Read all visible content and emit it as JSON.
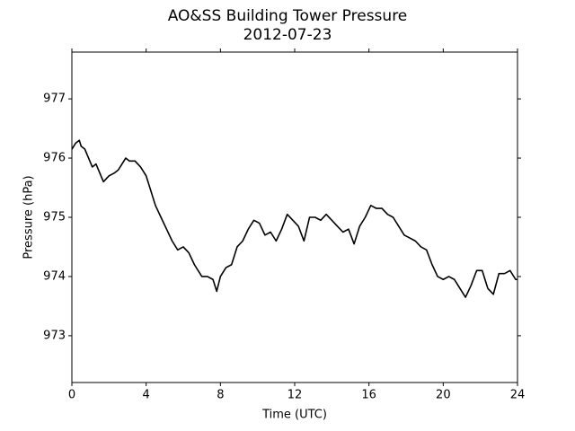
{
  "chart_data": {
    "type": "line",
    "title": "AO&SS Building Tower Pressure",
    "subtitle": "2012-07-23",
    "x_label": "Time (UTC)",
    "y_label": "Pressure (hPa)",
    "xlim": [
      0,
      24
    ],
    "xticks": [
      0,
      4,
      8,
      12,
      16,
      20,
      24
    ],
    "ylim": [
      972.21,
      977.79
    ],
    "yticks": [
      973,
      974,
      975,
      976,
      977
    ],
    "series": [
      {
        "name": "Pressure",
        "color": "#000000",
        "x": [
          0,
          0.2,
          0.4,
          0.5,
          0.7,
          0.9,
          1.1,
          1.3,
          1.5,
          1.7,
          2.0,
          2.3,
          2.5,
          2.7,
          2.9,
          3.1,
          3.4,
          3.7,
          4.0,
          4.2,
          4.5,
          4.8,
          5.1,
          5.4,
          5.7,
          6.0,
          6.3,
          6.6,
          7.0,
          7.3,
          7.6,
          7.8,
          8.0,
          8.3,
          8.6,
          8.9,
          9.2,
          9.5,
          9.8,
          10.1,
          10.4,
          10.7,
          11.0,
          11.3,
          11.6,
          11.9,
          12.2,
          12.5,
          12.8,
          13.1,
          13.4,
          13.7,
          14.0,
          14.3,
          14.6,
          14.9,
          15.2,
          15.5,
          15.8,
          16.1,
          16.4,
          16.7,
          17.0,
          17.3,
          17.6,
          17.9,
          18.2,
          18.5,
          18.8,
          19.1,
          19.4,
          19.7,
          20.0,
          20.3,
          20.6,
          20.9,
          21.2,
          21.5,
          21.8,
          22.1,
          22.4,
          22.7,
          23.0,
          23.3,
          23.6,
          23.9,
          24.0
        ],
        "values": [
          976.15,
          976.25,
          976.3,
          976.2,
          976.15,
          976.0,
          975.85,
          975.9,
          975.75,
          975.6,
          975.7,
          975.75,
          975.8,
          975.9,
          976.0,
          975.95,
          975.95,
          975.85,
          975.7,
          975.5,
          975.2,
          975.0,
          974.8,
          974.6,
          974.45,
          974.5,
          974.4,
          974.2,
          974.0,
          974.0,
          973.95,
          973.75,
          974.0,
          974.15,
          974.2,
          974.5,
          974.6,
          974.8,
          974.95,
          974.9,
          974.7,
          974.75,
          974.6,
          974.8,
          975.05,
          974.95,
          974.85,
          974.6,
          975.0,
          975.0,
          974.95,
          975.05,
          974.95,
          974.85,
          974.75,
          974.8,
          974.55,
          974.85,
          975.0,
          975.2,
          975.15,
          975.15,
          975.05,
          975.0,
          974.85,
          974.7,
          974.65,
          974.6,
          974.5,
          974.45,
          974.2,
          974.0,
          973.95,
          974.0,
          973.95,
          973.8,
          973.65,
          973.85,
          974.1,
          974.1,
          973.8,
          973.7,
          974.05,
          974.05,
          974.1,
          973.95,
          973.95
        ]
      }
    ]
  }
}
